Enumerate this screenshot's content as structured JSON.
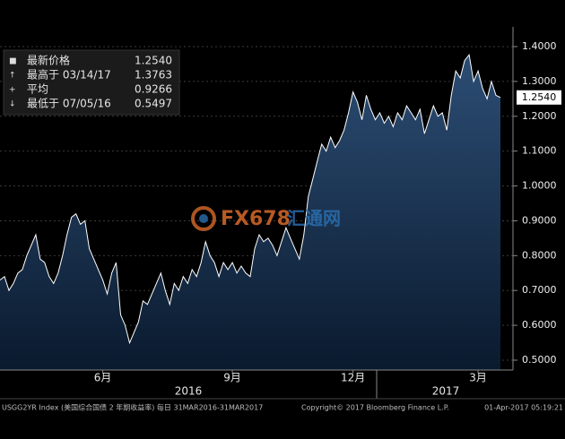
{
  "chart_data": {
    "type": "area",
    "series_color": "#ffffff",
    "fill_top": "#2c4d74",
    "fill_bottom": "#0a1a2e",
    "grid": true,
    "ylim": [
      0.5,
      1.4
    ],
    "yticks": [
      {
        "value": 0.5,
        "label": "0.5000"
      },
      {
        "value": 0.6,
        "label": "0.6000"
      },
      {
        "value": 0.7,
        "label": "0.7000"
      },
      {
        "value": 0.8,
        "label": "0.8000"
      },
      {
        "value": 0.9,
        "label": "0.9000"
      },
      {
        "value": 1.0,
        "label": "1.0000"
      },
      {
        "value": 1.1,
        "label": "1.1000"
      },
      {
        "value": 1.2,
        "label": "1.2000"
      },
      {
        "value": 1.3,
        "label": "1.3000"
      },
      {
        "value": 1.4,
        "label": "1.4000"
      }
    ],
    "categories": [
      null,
      null,
      null,
      null,
      null,
      null,
      null,
      null,
      null,
      null,
      null,
      null,
      null,
      null,
      null,
      null,
      null,
      null,
      null,
      null,
      null,
      null,
      null,
      "6月",
      null,
      null,
      null,
      null,
      null,
      null,
      null,
      null,
      null,
      null,
      null,
      null,
      null,
      null,
      null,
      null,
      null,
      null,
      null,
      null,
      null,
      null,
      null,
      null,
      null,
      null,
      null,
      null,
      "9月",
      null,
      null,
      null,
      null,
      null,
      null,
      null,
      null,
      null,
      null,
      null,
      null,
      null,
      null,
      null,
      null,
      null,
      null,
      null,
      null,
      null,
      null,
      null,
      null,
      null,
      null,
      "12月",
      null,
      null,
      null,
      null,
      null,
      null,
      null,
      null,
      null,
      null,
      null,
      null,
      null,
      null,
      null,
      null,
      null,
      null,
      null,
      null,
      null,
      null,
      null,
      null,
      null,
      null,
      null,
      "3月",
      null,
      null,
      null,
      null,
      null
    ],
    "values": [
      0.73,
      0.74,
      0.7,
      0.72,
      0.75,
      0.76,
      0.8,
      0.83,
      0.86,
      0.79,
      0.78,
      0.74,
      0.72,
      0.75,
      0.8,
      0.86,
      0.91,
      0.92,
      0.89,
      0.9,
      0.82,
      0.79,
      0.76,
      0.73,
      0.69,
      0.75,
      0.78,
      0.63,
      0.6,
      0.5497,
      0.58,
      0.61,
      0.67,
      0.66,
      0.69,
      0.72,
      0.75,
      0.7,
      0.66,
      0.72,
      0.7,
      0.74,
      0.72,
      0.76,
      0.74,
      0.78,
      0.84,
      0.8,
      0.78,
      0.74,
      0.78,
      0.76,
      0.78,
      0.75,
      0.77,
      0.75,
      0.74,
      0.82,
      0.86,
      0.84,
      0.85,
      0.83,
      0.8,
      0.84,
      0.88,
      0.85,
      0.82,
      0.79,
      0.86,
      0.97,
      1.02,
      1.07,
      1.12,
      1.1,
      1.14,
      1.11,
      1.13,
      1.16,
      1.21,
      1.27,
      1.24,
      1.19,
      1.26,
      1.22,
      1.19,
      1.21,
      1.18,
      1.2,
      1.17,
      1.21,
      1.19,
      1.23,
      1.21,
      1.19,
      1.22,
      1.15,
      1.19,
      1.23,
      1.2,
      1.21,
      1.16,
      1.26,
      1.33,
      1.31,
      1.36,
      1.3763,
      1.3,
      1.33,
      1.28,
      1.25,
      1.3,
      1.26,
      1.254
    ],
    "last_price_label": "1.2540",
    "years": [
      "2016",
      "2017"
    ],
    "summary": [
      {
        "name": "最新价格",
        "value": "1.2540"
      },
      {
        "name": "最高于 03/14/17",
        "value": "1.3763"
      },
      {
        "name": "平均",
        "value": "0.9266"
      },
      {
        "name": "最低于 07/05/16",
        "value": "0.5497"
      }
    ],
    "watermark": {
      "brand": "FX678",
      "name": "汇通网"
    },
    "footer": {
      "index": "USGG2YR Index (美国综合国债 2 年期收益率) 每日 31MAR2016-31MAR2017",
      "copyright": "Copyright© 2017 Bloomberg Finance L.P.",
      "timestamp": "01-Apr-2017 05:19:21"
    }
  }
}
